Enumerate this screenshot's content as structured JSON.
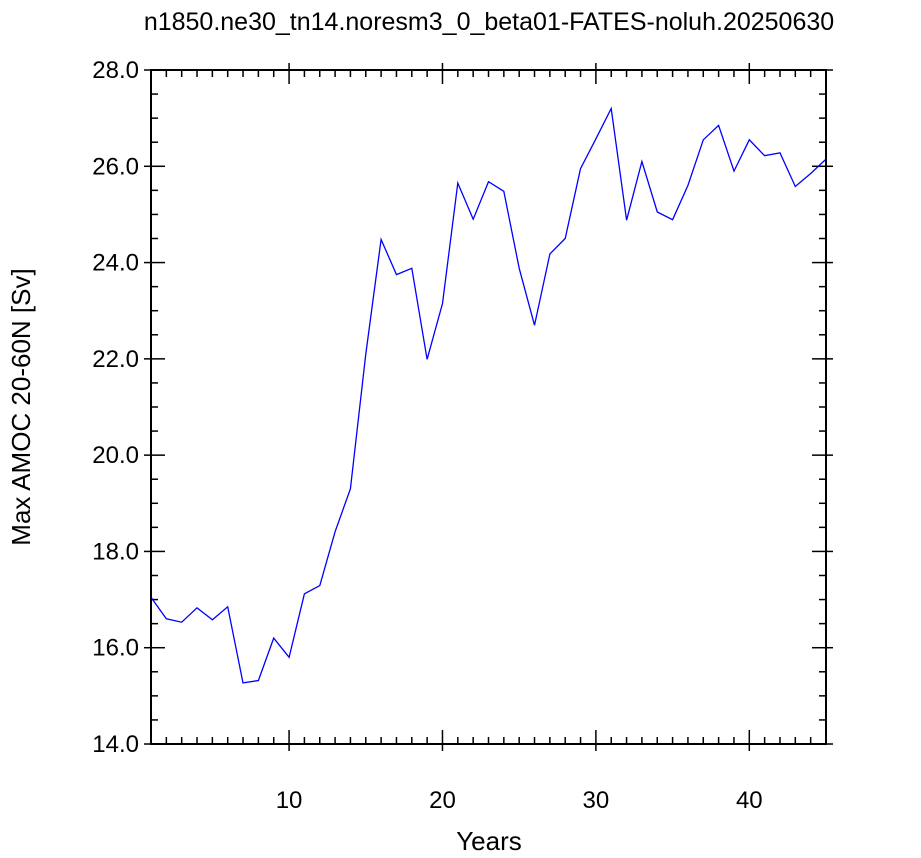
{
  "chart_data": {
    "type": "line",
    "title": "n1850.ne30_tn14.noresm3_0_beta01-FATES-noluh.20250630",
    "xlabel": "Years",
    "ylabel": "Max AMOC 20-60N [Sv]",
    "xlim": [
      1,
      45
    ],
    "ylim": [
      14.0,
      28.0
    ],
    "x_ticks": [
      10,
      20,
      30,
      40
    ],
    "x_tick_labels": [
      "10",
      "20",
      "30",
      "40"
    ],
    "y_ticks": [
      14,
      16,
      18,
      20,
      22,
      24,
      26,
      28
    ],
    "y_tick_labels": [
      "14.0",
      "16.0",
      "18.0",
      "20.0",
      "22.0",
      "24.0",
      "26.0",
      "28.0"
    ],
    "grid": false,
    "series": [
      {
        "color": "#0000ff",
        "x": [
          1,
          2,
          3,
          4,
          5,
          6,
          7,
          8,
          9,
          10,
          11,
          12,
          13,
          14,
          15,
          16,
          17,
          18,
          19,
          20,
          21,
          22,
          23,
          24,
          25,
          26,
          27,
          28,
          29,
          30,
          31,
          32,
          33,
          34,
          35,
          36,
          37,
          38,
          39,
          40,
          41,
          42,
          43,
          44,
          45
        ],
        "values": [
          17.05,
          16.6,
          16.53,
          16.83,
          16.58,
          16.85,
          15.27,
          15.32,
          16.2,
          15.8,
          17.12,
          17.29,
          18.41,
          19.3,
          22.1,
          24.48,
          23.75,
          23.88,
          21.99,
          23.15,
          25.65,
          24.9,
          25.68,
          25.48,
          23.88,
          22.7,
          24.18,
          24.5,
          25.95,
          26.57,
          27.2,
          24.88,
          26.1,
          25.05,
          24.89,
          25.6,
          26.55,
          26.85,
          25.9,
          26.55,
          26.22,
          26.28,
          25.58,
          25.85,
          26.15
        ]
      }
    ]
  }
}
